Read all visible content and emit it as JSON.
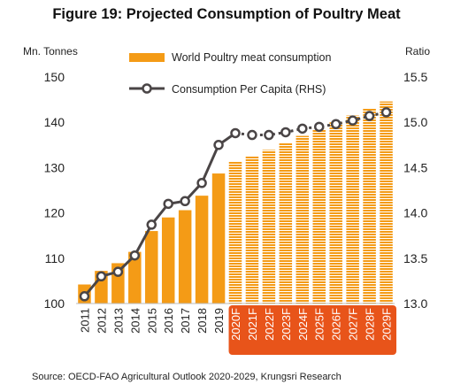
{
  "title": "Figure 19: Projected Consumption of Poultry Meat",
  "source": "Source: OECD-FAO Agricultural Outlook 2020-2029, Krungsri Research",
  "colors": {
    "bar": "#F49B16",
    "forecast_label_bg": "#E8541A",
    "line": "#4A4546",
    "marker_fill": "#ffffff"
  },
  "chart_data": {
    "type": "bar",
    "categories": [
      "2011",
      "2012",
      "2013",
      "2014",
      "2015",
      "2016",
      "2017",
      "2018",
      "2019",
      "2020F",
      "2021F",
      "2022F",
      "2023F",
      "2024F",
      "2025F",
      "2026F",
      "2027F",
      "2028F",
      "2029F"
    ],
    "forecast_start_index": 9,
    "y_left": {
      "label": "Mn. Tonnes",
      "ylim": [
        100,
        150
      ],
      "ticks": [
        100,
        110,
        120,
        130,
        140,
        150
      ]
    },
    "y_right": {
      "label": "Ratio",
      "ylim": [
        13.0,
        15.5
      ],
      "ticks": [
        "13.0",
        "13.5",
        "14.0",
        "14.5",
        "15.0",
        "15.5"
      ]
    },
    "series": [
      {
        "name": "World Poultry meat consumption",
        "kind": "bar",
        "axis": "left",
        "values": [
          104.2,
          107.2,
          108.9,
          111.4,
          116.0,
          119.0,
          120.6,
          123.8,
          128.7,
          131.3,
          132.5,
          133.9,
          135.5,
          137.0,
          138.5,
          140.0,
          141.5,
          143.0,
          144.6
        ]
      },
      {
        "name": "Consumption Per Capita (RHS)",
        "kind": "line",
        "axis": "right",
        "values": [
          13.08,
          13.3,
          13.35,
          13.53,
          13.87,
          14.1,
          14.13,
          14.33,
          14.75,
          14.88,
          14.86,
          14.86,
          14.89,
          14.93,
          14.95,
          14.98,
          15.02,
          15.07,
          15.11
        ]
      }
    ],
    "legend_position": "top-center",
    "grid": false
  }
}
